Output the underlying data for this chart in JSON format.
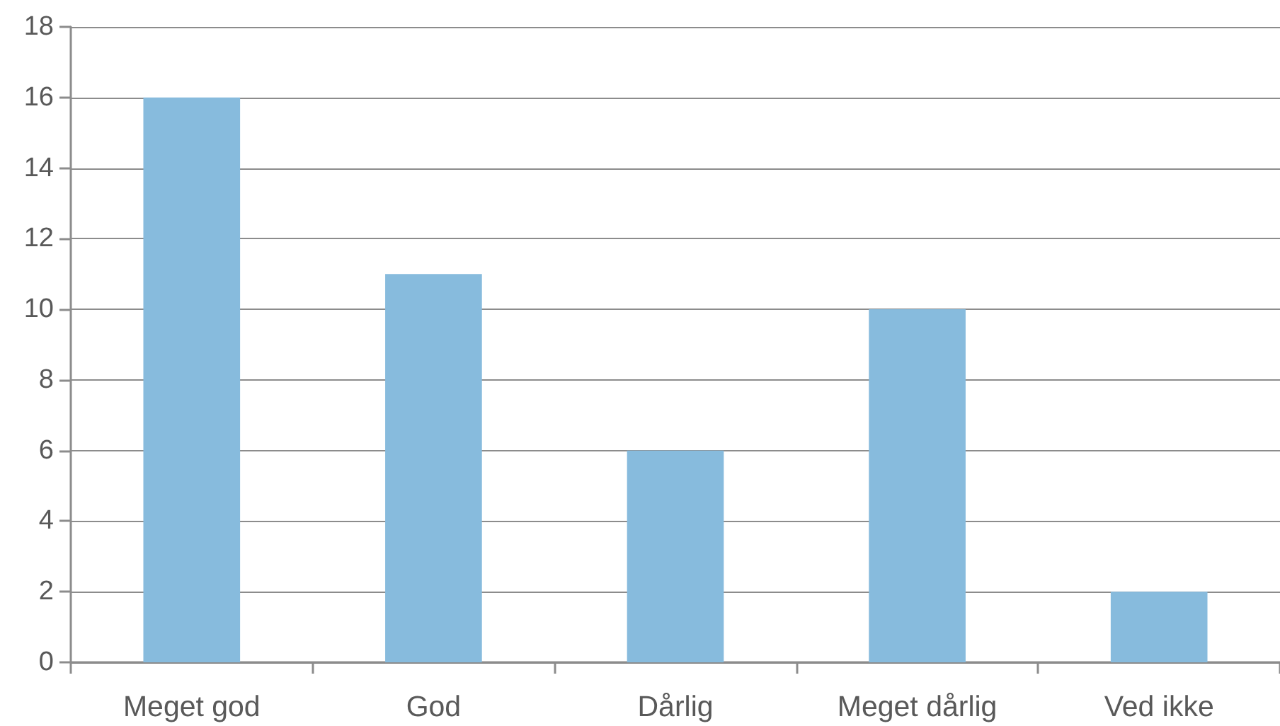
{
  "chart_data": {
    "type": "bar",
    "categories": [
      "Meget god",
      "God",
      "Dårlig",
      "Meget dårlig",
      "Ved ikke"
    ],
    "values": [
      16,
      11,
      6,
      10,
      2
    ],
    "color": "#87bbdd",
    "ylim": [
      0,
      18
    ],
    "yticks": [
      0,
      2,
      4,
      6,
      8,
      10,
      12,
      14,
      16,
      18
    ],
    "grid": "y"
  }
}
